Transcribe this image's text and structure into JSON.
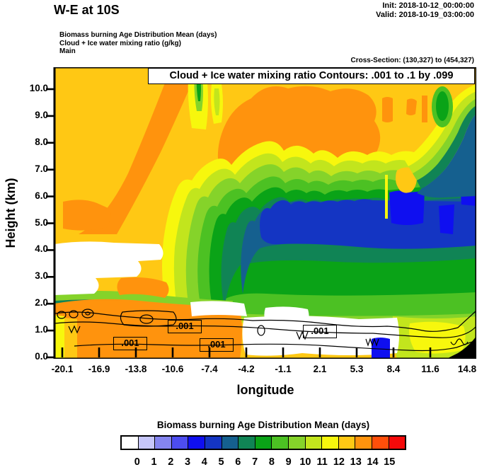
{
  "header": {
    "title": "W-E at 10S",
    "init": "Init: 2018-10-12_00:00:00",
    "valid": "Valid: 2018-10-19_03:00:00",
    "field_lines": [
      "Biomass burning Age Distribution Mean   (days)",
      "Cloud + Ice water mixing ratio   (g/kg)",
      "Main"
    ],
    "cross_section": "Cross-Section: (130,327) to (454,327)"
  },
  "chart_data": {
    "type": "heatmap",
    "title": "Cloud + Ice water mixing ratio Contours: .001 to .1 by .099",
    "xlabel": "longitude",
    "ylabel": "Height (km)",
    "x_ticks": [
      "-20.1",
      "-16.9",
      "-13.8",
      "-10.6",
      "-7.4",
      "-4.2",
      "-1.1",
      "2.1",
      "5.3",
      "8.4",
      "11.6",
      "14.8"
    ],
    "y_ticks": [
      "0.0",
      "1.0",
      "2.0",
      "3.0",
      "4.0",
      "5.0",
      "6.0",
      "7.0",
      "8.0",
      "9.0",
      "10.0"
    ],
    "x_range": [
      -20.1,
      14.8
    ],
    "y_range_km": [
      0.0,
      10.9
    ],
    "fill_field": "Biomass burning Age Distribution Mean (days)",
    "contour_field": "Cloud + Ice water mixing ratio (g/kg)",
    "contour_levels": [
      0.001,
      0.1
    ],
    "contour_labels": [
      ".001",
      ".001",
      ".001",
      ".001"
    ],
    "grid": false,
    "legend_position": "bottom",
    "colorbar": {
      "title": "Biomass burning Age Distribution Mean  (days)",
      "labels": [
        "0",
        "1",
        "2",
        "3",
        "4",
        "5",
        "6",
        "7",
        "8",
        "9",
        "10",
        "11",
        "12",
        "13",
        "14",
        "15"
      ],
      "colors": [
        "#FFFFFF",
        "#C6C6FA",
        "#8585F0",
        "#4D4DF0",
        "#0F0FF0",
        "#1435C3",
        "#15608F",
        "#108455",
        "#0AA317",
        "#4CC123",
        "#85D32A",
        "#C2E51D",
        "#F7F70D",
        "#FFC814",
        "#FF930D",
        "#FF4F0A",
        "#F50A0A"
      ]
    },
    "field_summary": {
      "upper_left_and_top": "aged smoke 12-14 days (amber/orange), orange plume band rising from lower-left",
      "mid_level_core": "young air 3-6 days (blue core near 5-6.5 km, center to east side)",
      "surroundings": "6-10 day greens around blue core down to ~1.5 km and to east edge",
      "boundary_layer_west": "13-14 day orange below ~1.5 km west of -5 deg",
      "no_data_white": "white lobes near 2.5-4 km west and in 0.5-1.5 km band center-east",
      "terrain": "black wedge at lower-right corner"
    }
  }
}
